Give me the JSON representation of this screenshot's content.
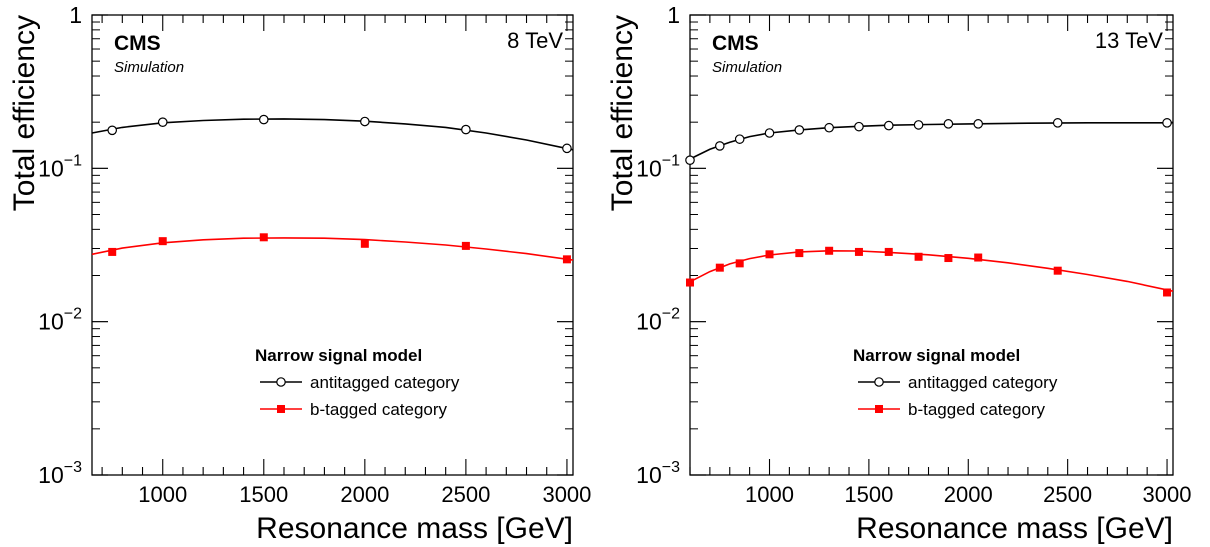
{
  "chart_data": [
    {
      "type": "line",
      "energy_label": "8 TeV",
      "experiment_label": "CMS",
      "sublabel": "Simulation",
      "xlabel": "Resonance mass [GeV]",
      "ylabel": "Total efficiency",
      "xlim": [
        650,
        3030
      ],
      "ylim": [
        0.001,
        1
      ],
      "yscale": "log",
      "grid": false,
      "x_ticks": [
        "1000",
        "1500",
        "2000",
        "2500",
        "3000"
      ],
      "y_ticks": [
        {
          "base": "1",
          "exp": ""
        },
        {
          "base": "10",
          "exp": "−1"
        },
        {
          "base": "10",
          "exp": "−2"
        },
        {
          "base": "10",
          "exp": "−3"
        }
      ],
      "legend": {
        "title": "Narrow signal model",
        "placement": "lower-center"
      },
      "series": [
        {
          "name": "antitagged category",
          "color": "#000000",
          "marker": "open-circle",
          "x": [
            750,
            1000,
            1500,
            2000,
            2500,
            3000
          ],
          "values": [
            0.177,
            0.2,
            0.208,
            0.202,
            0.179,
            0.135
          ],
          "fit_x": [
            650,
            800,
            1000,
            1200,
            1400,
            1600,
            1800,
            2000,
            2200,
            2400,
            2600,
            2800,
            3030
          ],
          "fit_y": [
            0.17,
            0.185,
            0.198,
            0.205,
            0.209,
            0.21,
            0.208,
            0.203,
            0.195,
            0.185,
            0.17,
            0.153,
            0.132
          ]
        },
        {
          "name": "b-tagged category",
          "color": "#ff0000",
          "marker": "filled-square",
          "x": [
            750,
            1000,
            1500,
            2000,
            2500,
            3000
          ],
          "values": [
            0.0285,
            0.0335,
            0.0355,
            0.0322,
            0.0312,
            0.0255
          ],
          "fit_x": [
            650,
            800,
            1000,
            1200,
            1400,
            1600,
            1800,
            2000,
            2200,
            2400,
            2600,
            2800,
            3030
          ],
          "fit_y": [
            0.0275,
            0.0302,
            0.0327,
            0.0342,
            0.035,
            0.0352,
            0.035,
            0.0343,
            0.0331,
            0.0316,
            0.0298,
            0.0278,
            0.0252
          ]
        }
      ]
    },
    {
      "type": "line",
      "energy_label": "13 TeV",
      "experiment_label": "CMS",
      "sublabel": "Simulation",
      "xlabel": "Resonance mass [GeV]",
      "ylabel": "Total efficiency",
      "xlim": [
        600,
        3030
      ],
      "ylim": [
        0.001,
        1
      ],
      "yscale": "log",
      "grid": false,
      "x_ticks": [
        "1000",
        "1500",
        "2000",
        "2500",
        "3000"
      ],
      "y_ticks": [
        {
          "base": "1",
          "exp": ""
        },
        {
          "base": "10",
          "exp": "−1"
        },
        {
          "base": "10",
          "exp": "−2"
        },
        {
          "base": "10",
          "exp": "−3"
        }
      ],
      "legend": {
        "title": "Narrow signal model",
        "placement": "lower-center"
      },
      "series": [
        {
          "name": "antitagged category",
          "color": "#000000",
          "marker": "open-circle",
          "x": [
            600,
            750,
            850,
            1000,
            1150,
            1300,
            1450,
            1600,
            1750,
            1900,
            2050,
            2450,
            3000
          ],
          "values": [
            0.113,
            0.14,
            0.155,
            0.17,
            0.178,
            0.184,
            0.187,
            0.19,
            0.192,
            0.195,
            0.195,
            0.198,
            0.198
          ],
          "fit_x": [
            600,
            700,
            800,
            900,
            1000,
            1150,
            1300,
            1450,
            1600,
            1800,
            2000,
            2300,
            2600,
            3030
          ],
          "fit_y": [
            0.115,
            0.133,
            0.148,
            0.161,
            0.17,
            0.178,
            0.184,
            0.188,
            0.191,
            0.193,
            0.195,
            0.197,
            0.198,
            0.198
          ]
        },
        {
          "name": "b-tagged category",
          "color": "#ff0000",
          "marker": "filled-square",
          "x": [
            600,
            750,
            850,
            1000,
            1150,
            1300,
            1450,
            1600,
            1750,
            1900,
            2050,
            2450,
            3000
          ],
          "values": [
            0.018,
            0.0225,
            0.024,
            0.0275,
            0.028,
            0.029,
            0.0285,
            0.0285,
            0.0265,
            0.026,
            0.0262,
            0.0215,
            0.0155
          ],
          "fit_x": [
            600,
            700,
            800,
            900,
            1000,
            1150,
            1300,
            1450,
            1600,
            1800,
            2000,
            2200,
            2400,
            2600,
            2800,
            3030
          ],
          "fit_y": [
            0.0182,
            0.0212,
            0.0238,
            0.0258,
            0.0272,
            0.0285,
            0.029,
            0.0289,
            0.0283,
            0.0273,
            0.0259,
            0.0242,
            0.0223,
            0.0203,
            0.0183,
            0.0158
          ]
        }
      ]
    }
  ]
}
